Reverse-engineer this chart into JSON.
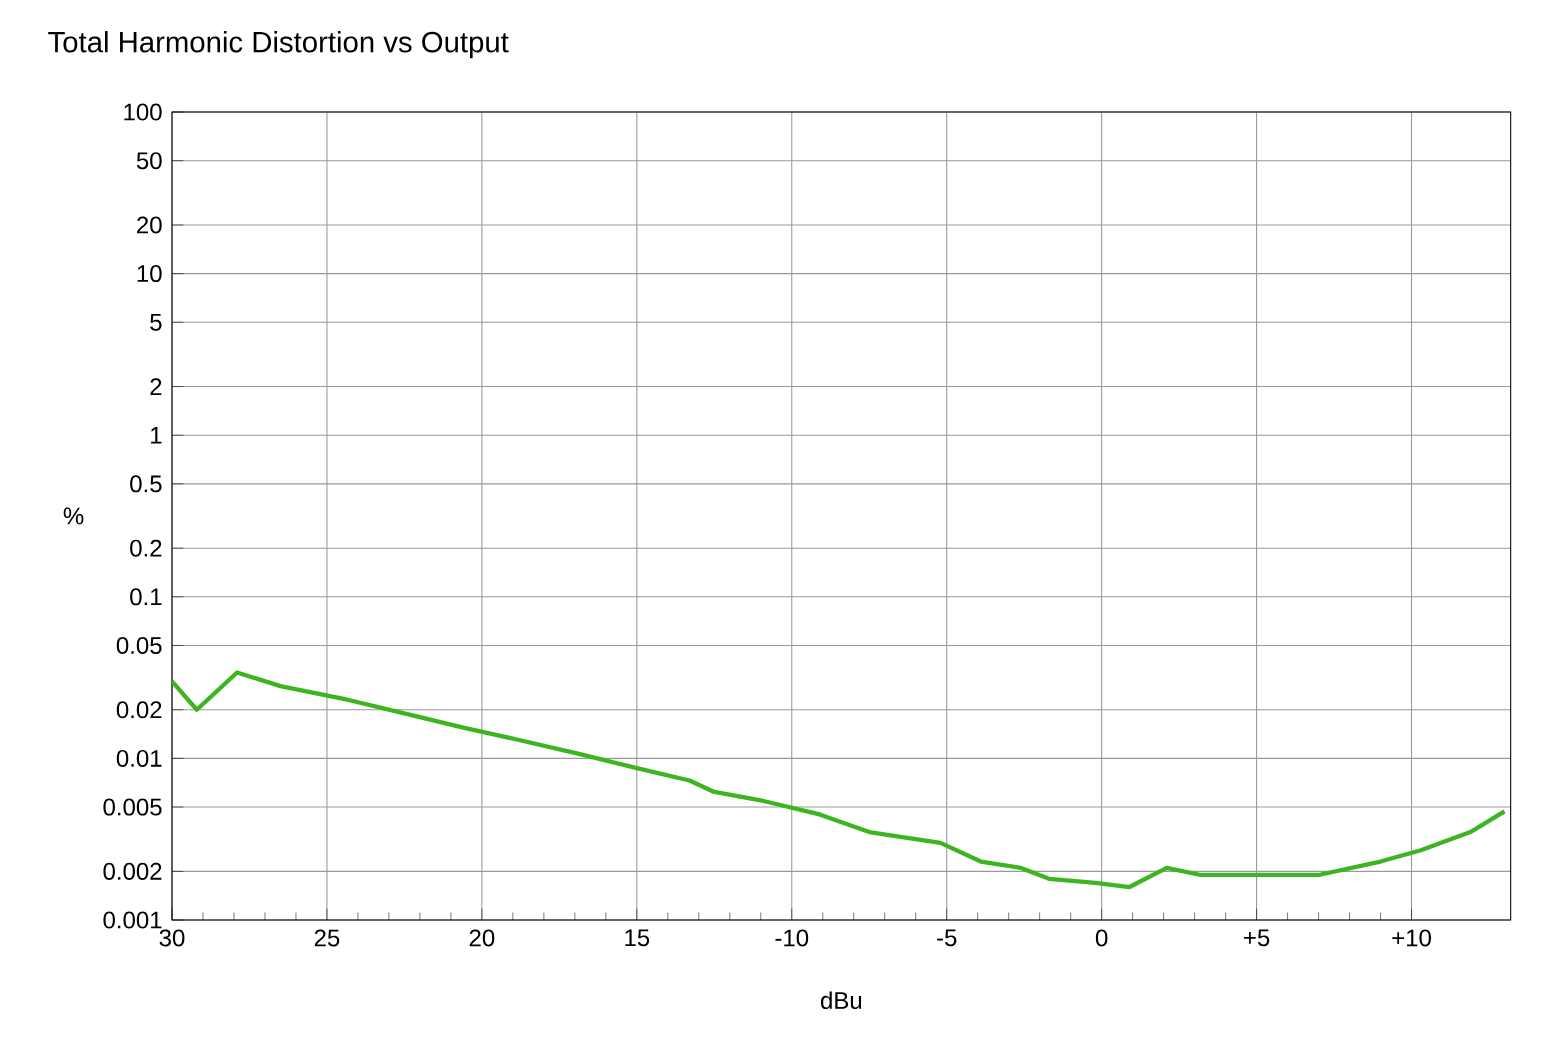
{
  "chart_data": {
    "type": "line",
    "title": "Total Harmonic Distortion vs Output",
    "xlabel": "dBu",
    "ylabel": "%",
    "x": [
      -30,
      -29.2,
      -27.9,
      -26.5,
      -24.3,
      -22,
      -20.6,
      -18.8,
      -16.8,
      -15,
      -13.3,
      -12.5,
      -11,
      -9.1,
      -7.5,
      -5.2,
      -3.9,
      -2.6,
      -1.7,
      -0.2,
      0.9,
      2.1,
      3.2,
      5.1,
      7,
      9,
      10.3,
      11.9,
      13
    ],
    "series": [
      {
        "color": "#3cb521",
        "values": [
          0.03,
          0.02,
          0.034,
          0.028,
          0.023,
          0.018,
          0.0155,
          0.013,
          0.0106,
          0.0087,
          0.0073,
          0.0062,
          0.0055,
          0.0045,
          0.0035,
          0.003,
          0.0023,
          0.0021,
          0.0018,
          0.0017,
          0.0016,
          0.0021,
          0.0019,
          0.0019,
          0.0019,
          0.0023,
          0.0027,
          0.0035,
          0.0047
        ]
      }
    ],
    "xlim": [
      -30,
      13.2
    ],
    "xticks": [
      {
        "value": -30,
        "label": "30"
      },
      {
        "value": -25,
        "label": "25"
      },
      {
        "value": -20,
        "label": "20"
      },
      {
        "value": -15,
        "label": "15"
      },
      {
        "value": -10,
        "label": "-10"
      },
      {
        "value": -5,
        "label": "-5"
      },
      0,
      {
        "value": 5,
        "label": "+5"
      },
      {
        "value": 10,
        "label": "+10"
      }
    ],
    "ylim": [
      0.001,
      100
    ],
    "yticks": [
      100,
      50,
      20,
      10,
      5,
      2,
      1,
      0.5,
      0.2,
      0.1,
      0.05,
      0.02,
      0.01,
      0.005,
      0.002,
      0.001
    ],
    "log": "y",
    "grid": true,
    "marker": "none",
    "line_style": "solid"
  }
}
